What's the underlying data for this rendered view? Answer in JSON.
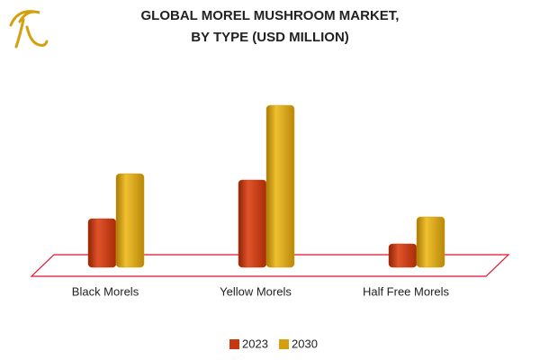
{
  "chart_data": {
    "type": "bar",
    "title": [
      "GLOBAL MOREL MUSHROOM MARKET,",
      "BY TYPE (USD MILLION)"
    ],
    "categories": [
      "Black Morels",
      "Yellow Morels",
      "Half Free Morels"
    ],
    "series": [
      {
        "name": "2023",
        "color": "#c8380e",
        "values": [
          54,
          97,
          26
        ]
      },
      {
        "name": "2030",
        "color": "#d4a010",
        "values": [
          104,
          180,
          56
        ]
      }
    ],
    "legend": "bottom"
  }
}
